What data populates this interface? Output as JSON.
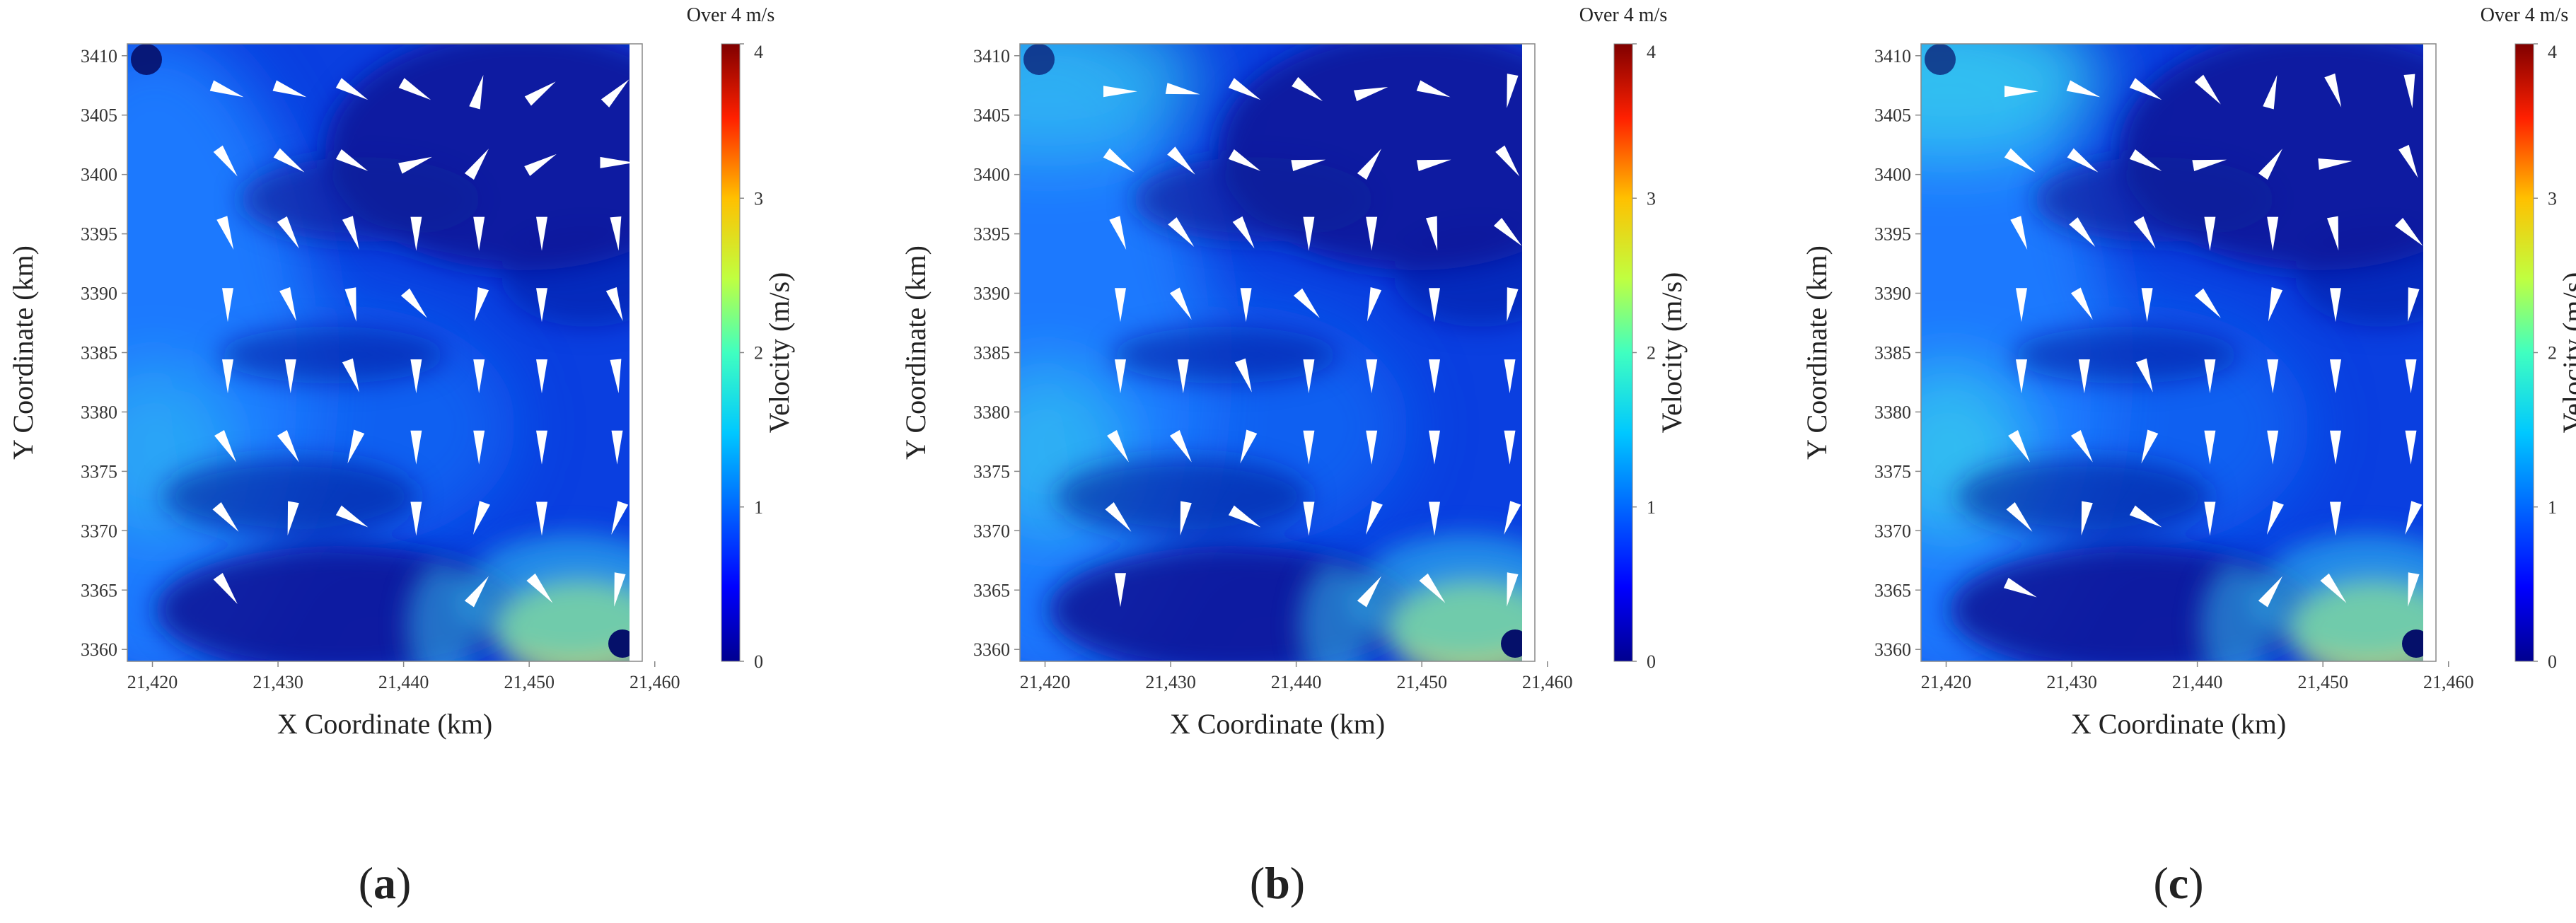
{
  "colors": {
    "deep": "#0a1a9a",
    "mid": "#0a3fe0",
    "bright": "#1a7cff",
    "cyan": "#35c8f0",
    "yellow": "#d8e840",
    "arrow": "#ffffff"
  },
  "chart_data": [
    {
      "type": "heatmap",
      "panel_label": "(a)",
      "xlabel": "X Coordinate (km)",
      "ylabel": "Y Coordinate (km)",
      "xlim": [
        21418,
        21459
      ],
      "ylim": [
        3359,
        3411
      ],
      "x_ticks": [
        21420,
        21430,
        21440,
        21450,
        21460
      ],
      "x_tick_labels": [
        "21,420",
        "21,430",
        "21,440",
        "21,450",
        "21,460"
      ],
      "y_ticks": [
        3360,
        3365,
        3370,
        3375,
        3380,
        3385,
        3390,
        3395,
        3400,
        3405,
        3410
      ],
      "y_tick_labels": [
        "3360",
        "3365",
        "3370",
        "3375",
        "3380",
        "3385",
        "3390",
        "3395",
        "3400",
        "3405",
        "3410"
      ],
      "colorbar": {
        "label": "Velocity (m/s)",
        "over_label": "Over 4 m/s",
        "range": [
          0,
          4
        ],
        "ticks": [
          0,
          1,
          2,
          3,
          4
        ],
        "tick_labels": [
          "0",
          "1",
          "2",
          "3",
          "4"
        ]
      },
      "arrow_grid": {
        "x": [
          21426,
          21431,
          21436,
          21441,
          21446,
          21451,
          21457
        ],
        "y": [
          3407,
          3401,
          3395,
          3389,
          3383,
          3377,
          3371,
          3365
        ]
      },
      "arrow_rows": [
        [
          110,
          110,
          120,
          120,
          15,
          55,
          45
        ],
        [
          145,
          125,
          120,
          70,
          35,
          60,
          90
        ],
        [
          160,
          150,
          160,
          180,
          180,
          180,
          175
        ],
        [
          180,
          160,
          170,
          140,
          195,
          180,
          160
        ],
        [
          180,
          180,
          160,
          180,
          180,
          180,
          175
        ],
        [
          150,
          150,
          200,
          180,
          180,
          180,
          180
        ],
        [
          140,
          190,
          120,
          180,
          200,
          180,
          200
        ],
        [
          145,
          null,
          null,
          null,
          35,
          140,
          190
        ]
      ],
      "arrow_speeds": [
        [
          1,
          1,
          1,
          1,
          1,
          1,
          1
        ],
        [
          1,
          1,
          1,
          1,
          1,
          1,
          1
        ],
        [
          1,
          1,
          1,
          1,
          1,
          1,
          1
        ],
        [
          1,
          1,
          1,
          1,
          1,
          1,
          1
        ],
        [
          1,
          1,
          1,
          1,
          1,
          1,
          1
        ],
        [
          1,
          1,
          1,
          1,
          1,
          1,
          1
        ],
        [
          1,
          1,
          1,
          1,
          1,
          1,
          1
        ],
        [
          1,
          1,
          1,
          1,
          1,
          1,
          1
        ]
      ],
      "high_velocity_zones": [
        {
          "x": 21452,
          "y": 3362,
          "value": 1.9
        },
        {
          "x": 21420,
          "y": 3376,
          "value": 1.1
        }
      ]
    },
    {
      "type": "heatmap",
      "panel_label": "(b)",
      "xlabel": "X Coordinate (km)",
      "ylabel": "Y Coordinate (km)",
      "xlim": [
        21418,
        21459
      ],
      "ylim": [
        3359,
        3411
      ],
      "x_ticks": [
        21420,
        21430,
        21440,
        21450,
        21460
      ],
      "x_tick_labels": [
        "21,420",
        "21,430",
        "21,440",
        "21,450",
        "21,460"
      ],
      "y_ticks": [
        3360,
        3365,
        3370,
        3375,
        3380,
        3385,
        3390,
        3395,
        3400,
        3405,
        3410
      ],
      "y_tick_labels": [
        "3360",
        "3365",
        "3370",
        "3375",
        "3380",
        "3385",
        "3390",
        "3395",
        "3400",
        "3405",
        "3410"
      ],
      "colorbar": {
        "label": "Velocity (m/s)",
        "over_label": "Over 4 m/s",
        "range": [
          0,
          4
        ],
        "ticks": [
          0,
          1,
          2,
          3,
          4
        ],
        "tick_labels": [
          "0",
          "1",
          "2",
          "3",
          "4"
        ]
      },
      "arrow_grid": {
        "x": [
          21426,
          21431,
          21436,
          21441,
          21446,
          21451,
          21457
        ],
        "y": [
          3407,
          3401,
          3395,
          3389,
          3383,
          3377,
          3371,
          3365
        ]
      },
      "arrow_rows": [
        [
          90,
          100,
          120,
          125,
          75,
          110,
          190
        ],
        [
          125,
          135,
          120,
          80,
          35,
          80,
          145
        ],
        [
          160,
          140,
          150,
          180,
          180,
          170,
          135
        ],
        [
          180,
          150,
          180,
          140,
          195,
          180,
          190
        ],
        [
          180,
          180,
          160,
          180,
          180,
          180,
          180
        ],
        [
          150,
          150,
          200,
          180,
          180,
          180,
          180
        ],
        [
          140,
          190,
          120,
          180,
          200,
          180,
          200
        ],
        [
          180,
          null,
          null,
          null,
          35,
          140,
          190
        ]
      ],
      "arrow_speeds": [
        [
          1,
          1,
          1,
          1,
          1,
          1,
          1
        ],
        [
          1,
          1,
          1,
          1,
          1,
          1,
          1
        ],
        [
          1,
          1,
          1,
          1,
          1,
          1,
          1
        ],
        [
          1,
          1,
          1,
          1,
          1,
          1,
          1
        ],
        [
          1,
          1,
          1,
          1,
          1,
          1,
          1
        ],
        [
          1,
          1,
          1,
          1,
          1,
          1,
          1
        ],
        [
          1,
          1,
          1,
          1,
          1,
          1,
          1
        ],
        [
          1,
          1,
          1,
          1,
          1,
          1,
          1
        ]
      ],
      "high_velocity_zones": [
        {
          "x": 21452,
          "y": 3362,
          "value": 2.1
        },
        {
          "x": 21420,
          "y": 3376,
          "value": 1.3
        },
        {
          "x": 21421,
          "y": 3409,
          "value": 1.4
        }
      ]
    },
    {
      "type": "heatmap",
      "panel_label": "(c)",
      "xlabel": "X Coordinate (km)",
      "ylabel": "Y Coordinate (km)",
      "xlim": [
        21418,
        21459
      ],
      "ylim": [
        3359,
        3411
      ],
      "x_ticks": [
        21420,
        21430,
        21440,
        21450,
        21460
      ],
      "x_tick_labels": [
        "21,420",
        "21,430",
        "21,440",
        "21,450",
        "21,460"
      ],
      "y_ticks": [
        3360,
        3365,
        3370,
        3375,
        3380,
        3385,
        3390,
        3395,
        3400,
        3405,
        3410
      ],
      "y_tick_labels": [
        "3360",
        "3365",
        "3370",
        "3375",
        "3380",
        "3385",
        "3390",
        "3395",
        "3400",
        "3405",
        "3410"
      ],
      "colorbar": {
        "label": "Velocity (m/s)",
        "over_label": "Over 4 m/s",
        "range": [
          0,
          4
        ],
        "ticks": [
          0,
          1,
          2,
          3,
          4
        ],
        "tick_labels": [
          "0",
          "1",
          "2",
          "3",
          "4"
        ]
      },
      "arrow_grid": {
        "x": [
          21426,
          21431,
          21436,
          21441,
          21446,
          21451,
          21457
        ],
        "y": [
          3407,
          3401,
          3395,
          3389,
          3383,
          3377,
          3371,
          3365
        ]
      },
      "arrow_rows": [
        [
          90,
          110,
          120,
          140,
          15,
          160,
          175
        ],
        [
          125,
          125,
          120,
          80,
          35,
          85,
          155
        ],
        [
          160,
          140,
          150,
          180,
          180,
          170,
          135
        ],
        [
          180,
          150,
          180,
          140,
          195,
          180,
          190
        ],
        [
          180,
          180,
          160,
          180,
          180,
          180,
          180
        ],
        [
          150,
          150,
          200,
          180,
          180,
          180,
          180
        ],
        [
          140,
          190,
          120,
          180,
          200,
          180,
          200
        ],
        [
          115,
          null,
          null,
          null,
          35,
          140,
          190
        ]
      ],
      "arrow_speeds": [
        [
          1,
          1,
          1,
          1,
          1,
          1,
          1
        ],
        [
          1,
          1,
          1,
          1,
          1,
          1,
          1
        ],
        [
          1,
          1,
          1,
          1,
          1,
          1,
          1
        ],
        [
          1,
          1,
          1,
          1,
          1,
          1,
          1
        ],
        [
          1,
          1,
          1,
          1,
          1,
          1,
          1
        ],
        [
          1,
          1,
          1,
          1,
          1,
          1,
          1
        ],
        [
          1,
          1,
          1,
          1,
          1,
          1,
          1
        ],
        [
          1,
          1,
          1,
          1,
          1,
          1,
          1
        ]
      ],
      "high_velocity_zones": [
        {
          "x": 21452,
          "y": 3362,
          "value": 2.2
        },
        {
          "x": 21420,
          "y": 3376,
          "value": 1.5
        },
        {
          "x": 21421,
          "y": 3409,
          "value": 1.6
        }
      ]
    }
  ]
}
